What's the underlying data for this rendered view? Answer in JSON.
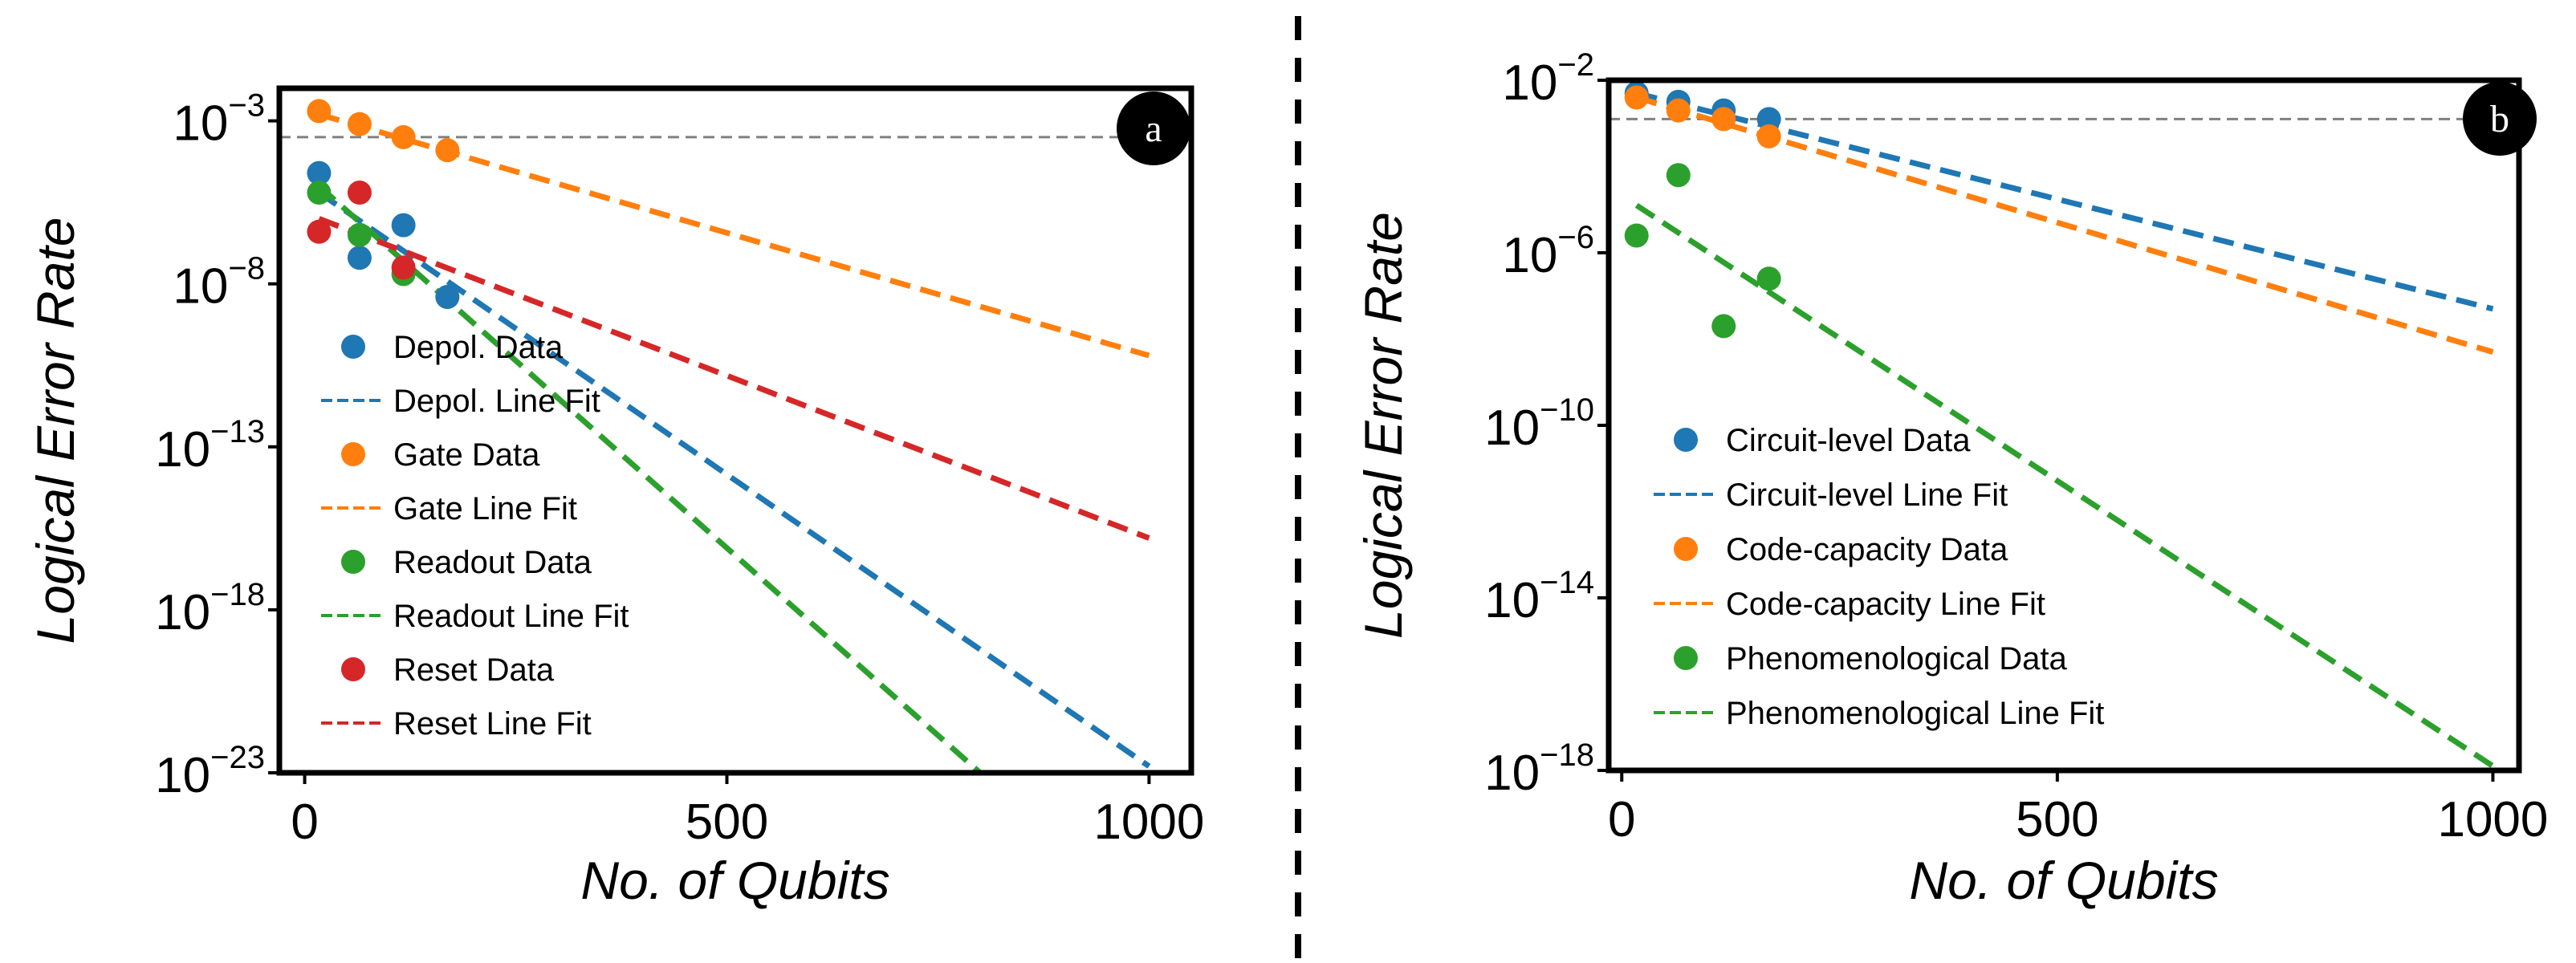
{
  "chart_data": [
    {
      "type": "scatter",
      "panel_label": "a",
      "xlabel": "No. of Qubits",
      "ylabel": "Logical Error Rate",
      "xlim": [
        -30,
        1050
      ],
      "x_ticks": [
        0,
        500,
        1000
      ],
      "y_scale": "log",
      "ylim_exp": [
        -23,
        -2
      ],
      "y_ticks": [
        {
          "base": "10",
          "exp": "−3",
          "value_exp": -3
        },
        {
          "base": "10",
          "exp": "−8",
          "value_exp": -8
        },
        {
          "base": "10",
          "exp": "−13",
          "value_exp": -13
        },
        {
          "base": "10",
          "exp": "−18",
          "value_exp": -18
        },
        {
          "base": "10",
          "exp": "−23",
          "value_exp": -23
        }
      ],
      "threshold_line_exp": -3.5,
      "legend_position": "lower-left",
      "series": [
        {
          "name": "Depol. Data",
          "kind": "points",
          "color": "#1f77b4",
          "x": [
            17,
            65,
            117,
            169
          ],
          "y_exp": [
            -4.6,
            -7.2,
            -6.2,
            -8.4
          ]
        },
        {
          "name": "Depol. Line Fit",
          "kind": "line",
          "color": "#1f77b4",
          "x": [
            17,
            1000
          ],
          "y_exp": [
            -5.2,
            -22.8
          ]
        },
        {
          "name": "Gate Data",
          "kind": "points",
          "color": "#ff7f0e",
          "x": [
            17,
            65,
            117,
            169
          ],
          "y_exp": [
            -2.7,
            -3.1,
            -3.5,
            -3.9
          ]
        },
        {
          "name": "Gate Line Fit",
          "kind": "line",
          "color": "#ff7f0e",
          "x": [
            17,
            1000
          ],
          "y_exp": [
            -2.8,
            -10.2
          ]
        },
        {
          "name": "Readout Data",
          "kind": "points",
          "color": "#2ca02c",
          "x": [
            17,
            65,
            117
          ],
          "y_exp": [
            -5.2,
            -6.5,
            -7.7
          ]
        },
        {
          "name": "Readout Line Fit",
          "kind": "line",
          "color": "#2ca02c",
          "x": [
            17,
            800
          ],
          "y_exp": [
            -5.0,
            -23.0
          ]
        },
        {
          "name": "Reset Data",
          "kind": "points",
          "color": "#d62728",
          "x": [
            17,
            65,
            117
          ],
          "y_exp": [
            -6.4,
            -5.2,
            -7.5
          ]
        },
        {
          "name": "Reset Line Fit",
          "kind": "line",
          "color": "#d62728",
          "x": [
            17,
            1000
          ],
          "y_exp": [
            -6.0,
            -15.8
          ]
        }
      ]
    },
    {
      "type": "scatter",
      "panel_label": "b",
      "xlabel": "No. of Qubits",
      "ylabel": "Logical Error Rate",
      "xlim": [
        -15,
        1030
      ],
      "x_ticks": [
        0,
        500,
        1000
      ],
      "y_scale": "log",
      "ylim_exp": [
        -18,
        -2
      ],
      "y_ticks": [
        {
          "base": "10",
          "exp": "−2",
          "value_exp": -2
        },
        {
          "base": "10",
          "exp": "−6",
          "value_exp": -6
        },
        {
          "base": "10",
          "exp": "−10",
          "value_exp": -10
        },
        {
          "base": "10",
          "exp": "−14",
          "value_exp": -14
        },
        {
          "base": "10",
          "exp": "−18",
          "value_exp": -18
        }
      ],
      "threshold_line_exp": -2.9,
      "legend_position": "lower-left",
      "series": [
        {
          "name": "Circuit-level Data",
          "kind": "points",
          "color": "#1f77b4",
          "x": [
            17,
            65,
            117,
            169
          ],
          "y_exp": [
            -2.3,
            -2.5,
            -2.7,
            -2.9
          ]
        },
        {
          "name": "Circuit-level Line Fit",
          "kind": "line",
          "color": "#1f77b4",
          "x": [
            17,
            1000
          ],
          "y_exp": [
            -2.3,
            -7.3
          ]
        },
        {
          "name": "Code-capacity Data",
          "kind": "points",
          "color": "#ff7f0e",
          "x": [
            17,
            65,
            117,
            169
          ],
          "y_exp": [
            -2.4,
            -2.7,
            -2.9,
            -3.3
          ]
        },
        {
          "name": "Code-capacity Line Fit",
          "kind": "line",
          "color": "#ff7f0e",
          "x": [
            17,
            1000
          ],
          "y_exp": [
            -2.4,
            -8.3
          ]
        },
        {
          "name": "Phenomenological Data",
          "kind": "points",
          "color": "#2ca02c",
          "x": [
            17,
            65,
            117,
            169
          ],
          "y_exp": [
            -5.6,
            -4.2,
            -7.7,
            -6.6
          ]
        },
        {
          "name": "Phenomenological Line Fit",
          "kind": "line",
          "color": "#2ca02c",
          "x": [
            17,
            1000
          ],
          "y_exp": [
            -4.9,
            -17.9
          ]
        }
      ]
    }
  ]
}
